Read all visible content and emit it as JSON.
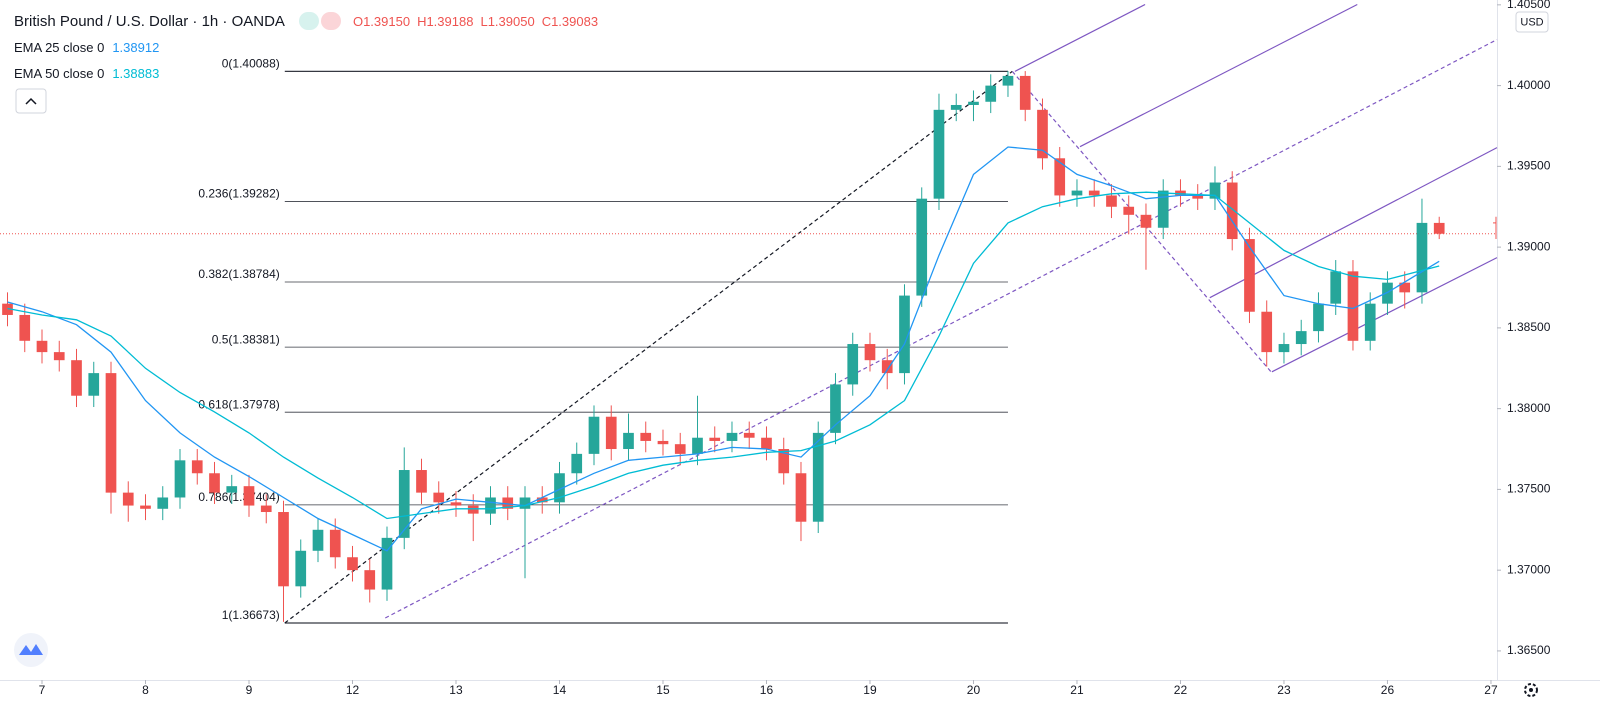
{
  "chart_data": {
    "type": "candlestick",
    "title": "British Pound / U.S. Dollar · 1h · OANDA",
    "quote": {
      "names": [
        "O",
        "H",
        "L",
        "C"
      ],
      "values": [
        1.3915,
        1.39188,
        1.3905,
        1.39083
      ],
      "value_labels": [
        "1.39150",
        "1.39188",
        "1.39050",
        "1.39083"
      ],
      "color": "#ef5350"
    },
    "currency": "USD",
    "up_color": "#26a69a",
    "down_color": "#ef5350",
    "x": [
      -8,
      -4,
      0,
      4,
      8,
      12,
      16,
      20,
      24,
      28,
      32,
      36,
      40,
      44,
      48,
      52,
      56,
      60,
      64,
      68,
      72,
      76,
      80,
      84,
      88,
      92,
      96,
      100,
      104,
      108,
      112,
      116,
      120,
      124,
      128,
      132,
      136,
      140,
      144,
      148,
      152,
      156,
      160,
      164,
      168,
      172,
      176,
      180,
      184,
      188,
      192,
      196,
      200,
      204,
      208,
      212,
      216,
      220,
      224,
      228,
      232,
      236,
      240,
      244,
      248,
      252,
      256,
      260,
      264,
      268,
      272,
      276,
      280,
      284,
      288,
      292,
      296,
      300,
      304,
      308,
      312,
      316,
      320,
      324
    ],
    "open": [
      1.3865,
      1.3858,
      1.3842,
      1.3835,
      1.383,
      1.3808,
      1.3822,
      1.3748,
      1.374,
      1.3738,
      1.3745,
      1.3768,
      1.376,
      1.3748,
      1.3752,
      1.374,
      1.3736,
      1.369,
      1.3712,
      1.3725,
      1.3708,
      1.37,
      1.3688,
      1.372,
      1.3762,
      1.3748,
      1.3742,
      1.374,
      1.3735,
      1.3745,
      1.3738,
      1.3745,
      1.3742,
      1.376,
      1.3772,
      1.3795,
      1.3775,
      1.3785,
      1.378,
      1.3778,
      1.3772,
      1.3782,
      1.378,
      1.3785,
      1.3782,
      1.3775,
      1.376,
      1.373,
      1.3785,
      1.3815,
      1.384,
      1.383,
      1.3822,
      1.387,
      1.393,
      1.3985,
      1.3988,
      1.399,
      1.4,
      1.4006,
      1.3985,
      1.3955,
      1.3932,
      1.3935,
      1.3932,
      1.3925,
      1.392,
      1.3912,
      1.3935,
      1.3932,
      1.393,
      1.394,
      1.3905,
      1.386,
      1.3835,
      1.384,
      1.3848,
      1.3865,
      1.3885,
      1.3842,
      1.3865,
      1.3878,
      1.3872,
      1.3915
    ],
    "high": [
      1.3872,
      1.3865,
      1.3849,
      1.3842,
      1.3837,
      1.3829,
      1.3829,
      1.3755,
      1.3747,
      1.3752,
      1.3775,
      1.3775,
      1.3767,
      1.3759,
      1.3759,
      1.3747,
      1.3743,
      1.3719,
      1.3732,
      1.3732,
      1.3715,
      1.3707,
      1.3727,
      1.3776,
      1.3769,
      1.3755,
      1.3749,
      1.3747,
      1.3752,
      1.3752,
      1.3752,
      1.3752,
      1.3767,
      1.3779,
      1.3802,
      1.3802,
      1.3797,
      1.3792,
      1.3787,
      1.3785,
      1.3808,
      1.3789,
      1.3792,
      1.3792,
      1.3789,
      1.3782,
      1.3767,
      1.3792,
      1.3822,
      1.3847,
      1.3847,
      1.3837,
      1.3877,
      1.3937,
      1.3995,
      1.3995,
      1.3997,
      1.4007,
      1.4009,
      1.4009,
      1.3992,
      1.3962,
      1.3942,
      1.3942,
      1.3939,
      1.3932,
      1.3927,
      1.3942,
      1.3942,
      1.3939,
      1.395,
      1.3947,
      1.3912,
      1.3867,
      1.3847,
      1.3855,
      1.3872,
      1.3892,
      1.3892,
      1.3872,
      1.3885,
      1.3885,
      1.393,
      1.39188
    ],
    "low": [
      1.3851,
      1.3835,
      1.3828,
      1.3823,
      1.3801,
      1.3801,
      1.3735,
      1.373,
      1.3731,
      1.3731,
      1.3738,
      1.3753,
      1.3741,
      1.3741,
      1.3733,
      1.3729,
      1.3668,
      1.3683,
      1.3705,
      1.3701,
      1.3693,
      1.368,
      1.3681,
      1.3713,
      1.3741,
      1.3735,
      1.3733,
      1.3718,
      1.3728,
      1.3731,
      1.3695,
      1.3735,
      1.3735,
      1.3753,
      1.3765,
      1.3768,
      1.3768,
      1.3773,
      1.3771,
      1.3765,
      1.3765,
      1.3773,
      1.3773,
      1.3775,
      1.3768,
      1.3753,
      1.3718,
      1.3723,
      1.3778,
      1.3808,
      1.3823,
      1.3812,
      1.3815,
      1.3863,
      1.3923,
      1.3978,
      1.3978,
      1.3983,
      1.3993,
      1.3978,
      1.3948,
      1.3925,
      1.3925,
      1.3925,
      1.3918,
      1.3908,
      1.3886,
      1.3905,
      1.3925,
      1.3923,
      1.3923,
      1.3898,
      1.3853,
      1.3826,
      1.3828,
      1.3833,
      1.3841,
      1.3858,
      1.3836,
      1.3836,
      1.3858,
      1.3862,
      1.3865,
      1.3905
    ],
    "close": [
      1.3858,
      1.3842,
      1.3835,
      1.383,
      1.3808,
      1.3822,
      1.3748,
      1.374,
      1.3738,
      1.3745,
      1.3768,
      1.376,
      1.3748,
      1.3752,
      1.374,
      1.3736,
      1.369,
      1.3712,
      1.3725,
      1.3708,
      1.37,
      1.3688,
      1.372,
      1.3762,
      1.3748,
      1.3742,
      1.374,
      1.3735,
      1.3745,
      1.3738,
      1.3745,
      1.3742,
      1.376,
      1.3772,
      1.3795,
      1.3775,
      1.3785,
      1.378,
      1.3778,
      1.3772,
      1.3782,
      1.378,
      1.3785,
      1.3782,
      1.3775,
      1.376,
      1.373,
      1.3785,
      1.3815,
      1.384,
      1.383,
      1.3822,
      1.387,
      1.393,
      1.3985,
      1.3988,
      1.399,
      1.4,
      1.4006,
      1.3985,
      1.3955,
      1.3932,
      1.3935,
      1.3932,
      1.3925,
      1.392,
      1.3912,
      1.3935,
      1.3932,
      1.393,
      1.394,
      1.3905,
      1.386,
      1.3835,
      1.384,
      1.3848,
      1.3865,
      1.3885,
      1.3842,
      1.3865,
      1.3878,
      1.3872,
      1.3915,
      1.39083
    ],
    "series": [
      {
        "name": "EMA 25 close 0",
        "color": "#2196f3",
        "x": [
          -8,
          0,
          8,
          16,
          24,
          32,
          40,
          48,
          56,
          64,
          72,
          80,
          88,
          96,
          104,
          112,
          120,
          128,
          136,
          144,
          152,
          160,
          168,
          176,
          184,
          192,
          200,
          208,
          216,
          224,
          232,
          240,
          248,
          256,
          264,
          272,
          280,
          288,
          296,
          304,
          312,
          324
        ],
        "values": [
          1.3866,
          1.386,
          1.3852,
          1.3835,
          1.3805,
          1.3785,
          1.377,
          1.3758,
          1.3745,
          1.3732,
          1.3722,
          1.3712,
          1.3738,
          1.3744,
          1.3742,
          1.374,
          1.375,
          1.376,
          1.3768,
          1.377,
          1.3772,
          1.3776,
          1.3775,
          1.377,
          1.379,
          1.3808,
          1.384,
          1.3895,
          1.3945,
          1.3962,
          1.396,
          1.3945,
          1.3938,
          1.393,
          1.3932,
          1.3932,
          1.39,
          1.387,
          1.3865,
          1.3862,
          1.3872,
          1.38912
        ]
      },
      {
        "name": "EMA 50 close 0",
        "color": "#00bcd4",
        "x": [
          -8,
          0,
          8,
          16,
          24,
          32,
          40,
          48,
          56,
          64,
          72,
          80,
          88,
          96,
          104,
          112,
          120,
          128,
          136,
          144,
          152,
          160,
          168,
          176,
          184,
          192,
          200,
          208,
          216,
          224,
          232,
          240,
          248,
          256,
          264,
          272,
          280,
          288,
          296,
          304,
          312,
          324
        ],
        "values": [
          1.3862,
          1.3858,
          1.3855,
          1.3845,
          1.3825,
          1.381,
          1.3798,
          1.3785,
          1.377,
          1.3757,
          1.3745,
          1.3732,
          1.3735,
          1.3738,
          1.3738,
          1.374,
          1.3745,
          1.3752,
          1.376,
          1.3765,
          1.3768,
          1.377,
          1.3773,
          1.3774,
          1.378,
          1.379,
          1.3805,
          1.3845,
          1.389,
          1.3915,
          1.3925,
          1.393,
          1.3933,
          1.3934,
          1.3933,
          1.3932,
          1.3915,
          1.3898,
          1.3888,
          1.3882,
          1.388,
          1.38883
        ]
      }
    ],
    "fibonacci": {
      "start": 56.3,
      "end": 224,
      "color": "#131722",
      "levels": [
        {
          "label": "0(1.40088)",
          "price": 1.40088
        },
        {
          "label": "0.236(1.39282)",
          "price": 1.39282
        },
        {
          "label": "0.382(1.38784)",
          "price": 1.38784
        },
        {
          "label": "0.5(1.38381)",
          "price": 1.38381
        },
        {
          "label": "0.618(1.37978)",
          "price": 1.37978
        },
        {
          "label": "0.786(1.37404)",
          "price": 1.37404
        },
        {
          "label": "1(1.36673)",
          "price": 1.36673
        }
      ]
    },
    "drawings": [
      {
        "style": "dashed",
        "color": "#131722",
        "points": [
          [
            56.3,
            1.36673
          ],
          [
            225,
            1.40088
          ]
        ]
      },
      {
        "style": "dashed",
        "color": "#7e57c2",
        "points": [
          [
            225,
            1.40088
          ],
          [
            285,
            1.38228
          ]
        ]
      },
      {
        "style": "dashed",
        "color": "#7e57c2",
        "points": [
          [
            79.6,
            1.36704
          ],
          [
            337.4,
            1.40285
          ]
        ]
      },
      {
        "style": "solid",
        "color": "#7e57c2",
        "points": [
          [
            225.6,
            1.40088
          ],
          [
            255.8,
            1.40502
          ]
        ]
      },
      {
        "style": "solid",
        "color": "#7e57c2",
        "points": [
          [
            240.7,
            1.39622
          ],
          [
            305,
            1.40502
          ]
        ]
      },
      {
        "style": "solid",
        "color": "#7e57c2",
        "points": [
          [
            270.8,
            1.38687
          ],
          [
            337.4,
            1.39616
          ]
        ]
      },
      {
        "style": "solid",
        "color": "#7e57c2",
        "points": [
          [
            285.2,
            1.38228
          ],
          [
            337.4,
            1.38935
          ]
        ]
      }
    ],
    "xlim": [
      -9.74,
      337.4
    ],
    "xticks": [
      {
        "value": 0,
        "label": "7"
      },
      {
        "value": 24,
        "label": "8"
      },
      {
        "value": 48,
        "label": "9"
      },
      {
        "value": 72,
        "label": "12"
      },
      {
        "value": 96,
        "label": "13"
      },
      {
        "value": 120,
        "label": "14"
      },
      {
        "value": 144,
        "label": "15"
      },
      {
        "value": 168,
        "label": "16"
      },
      {
        "value": 192,
        "label": "19"
      },
      {
        "value": 216,
        "label": "20"
      },
      {
        "value": 240,
        "label": "21"
      },
      {
        "value": 264,
        "label": "22"
      },
      {
        "value": 288,
        "label": "23"
      },
      {
        "value": 312,
        "label": "26"
      },
      {
        "value": 336,
        "label": "27"
      }
    ],
    "ylim": [
      1.3632,
      1.4053
    ],
    "yticks": [
      {
        "value": 1.365,
        "label": "1.36500"
      },
      {
        "value": 1.37,
        "label": "1.37000"
      },
      {
        "value": 1.375,
        "label": "1.37500"
      },
      {
        "value": 1.38,
        "label": "1.38000"
      },
      {
        "value": 1.385,
        "label": "1.38500"
      },
      {
        "value": 1.39,
        "label": "1.39000"
      },
      {
        "value": 1.395,
        "label": "1.39500"
      },
      {
        "value": 1.4,
        "label": "1.40000"
      },
      {
        "value": 1.405,
        "label": "1.40500"
      }
    ],
    "grid": false
  }
}
